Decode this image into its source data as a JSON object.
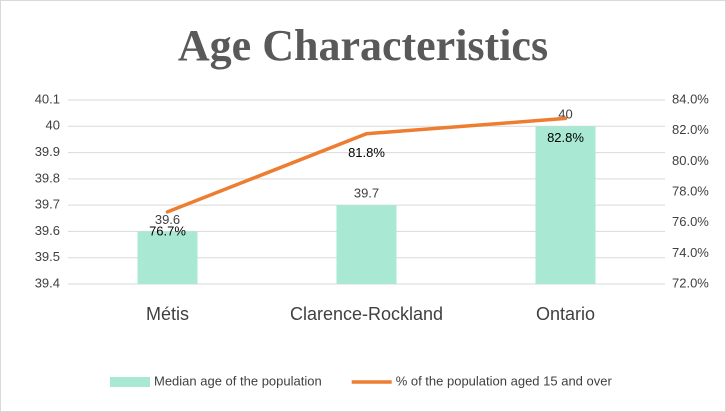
{
  "chart_data": {
    "type": "bar",
    "title": "Age Characteristics",
    "categories": [
      "Métis",
      "Clarence-Rockland",
      "Ontario"
    ],
    "series": [
      {
        "name": "Median age of the population",
        "type": "bar",
        "color": "#a9e8d3",
        "values": [
          39.6,
          39.7,
          40
        ]
      },
      {
        "name": "% of the population aged 15 and over",
        "type": "line",
        "axis": "y2",
        "color": "#ed7d31",
        "values": [
          76.7,
          81.8,
          82.8
        ],
        "value_labels": [
          "76.7%",
          "81.8%",
          "82.8%"
        ]
      }
    ],
    "ylim": [
      39.4,
      40.1
    ],
    "yticks": [
      39.4,
      39.5,
      39.6,
      39.7,
      39.8,
      39.9,
      40,
      40.1
    ],
    "y2lim": [
      72,
      84
    ],
    "y2ticks": [
      {
        "value": 72,
        "label": "72.0%"
      },
      {
        "value": 74,
        "label": "74.0%"
      },
      {
        "value": 76,
        "label": "76.0%"
      },
      {
        "value": 78,
        "label": "78.0%"
      },
      {
        "value": 80,
        "label": "80.0%"
      },
      {
        "value": 82,
        "label": "82.0%"
      },
      {
        "value": 84,
        "label": "84.0%"
      }
    ],
    "grid": true,
    "legend": "bottom"
  }
}
